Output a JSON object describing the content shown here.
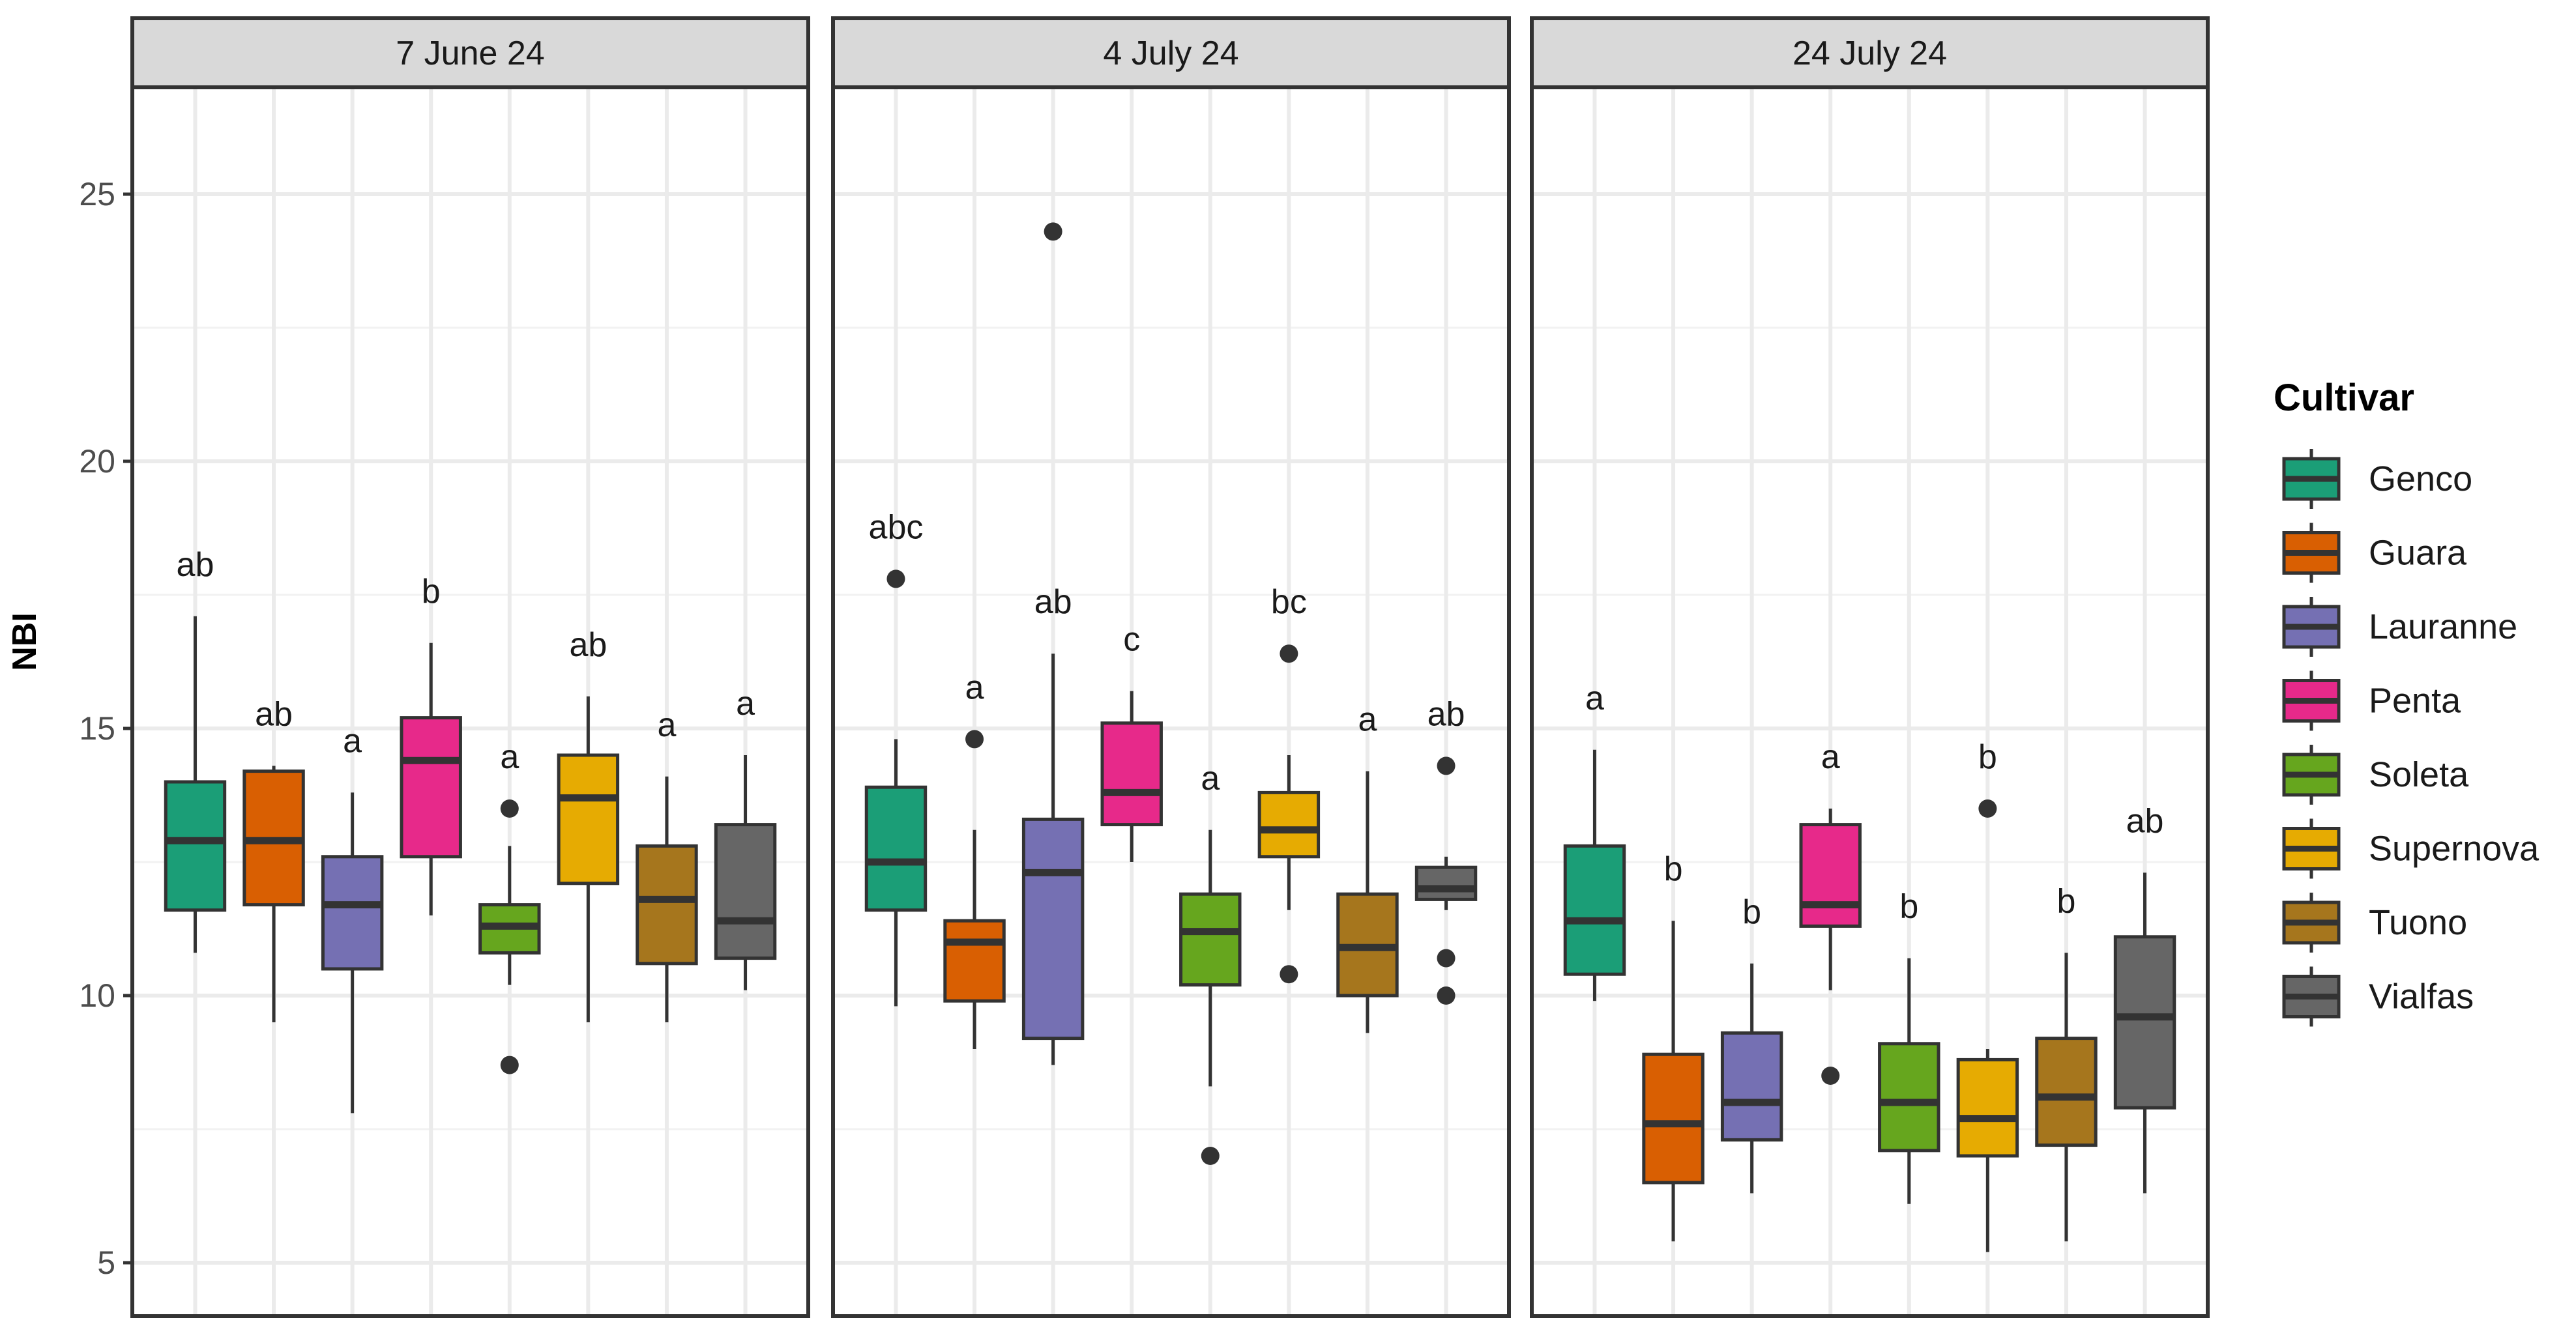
{
  "chart_data": {
    "type": "boxplot",
    "ylabel": "NBI",
    "ylim": [
      4,
      27
    ],
    "yticks": [
      5,
      10,
      15,
      20,
      25
    ],
    "legend": {
      "title": "Cultivar",
      "position": "right"
    },
    "cultivars": [
      {
        "name": "Genco",
        "color": "#1B9E77"
      },
      {
        "name": "Guara",
        "color": "#D95F02"
      },
      {
        "name": "Lauranne",
        "color": "#7570B3"
      },
      {
        "name": "Penta",
        "color": "#E7298A"
      },
      {
        "name": "Soleta",
        "color": "#66A61E"
      },
      {
        "name": "Supernova",
        "color": "#E6AB02"
      },
      {
        "name": "Tuono",
        "color": "#A6761D"
      },
      {
        "name": "Vialfas",
        "color": "#666666"
      }
    ],
    "panels": [
      {
        "label": "7 June 24",
        "boxes": [
          {
            "cultivar": "Genco",
            "lo": 10.8,
            "q1": 11.6,
            "med": 12.9,
            "q3": 14.0,
            "hi": 17.1,
            "out": [],
            "letter": "ab"
          },
          {
            "cultivar": "Guara",
            "lo": 9.5,
            "q1": 11.7,
            "med": 12.9,
            "q3": 14.2,
            "hi": 14.3,
            "out": [],
            "letter": "ab"
          },
          {
            "cultivar": "Lauranne",
            "lo": 7.8,
            "q1": 10.5,
            "med": 11.7,
            "q3": 12.6,
            "hi": 13.8,
            "out": [],
            "letter": "a"
          },
          {
            "cultivar": "Penta",
            "lo": 11.5,
            "q1": 12.6,
            "med": 14.4,
            "q3": 15.2,
            "hi": 16.6,
            "out": [],
            "letter": "b"
          },
          {
            "cultivar": "Soleta",
            "lo": 10.2,
            "q1": 10.8,
            "med": 11.3,
            "q3": 11.7,
            "hi": 12.8,
            "out": [
              13.5,
              8.7
            ],
            "letter": "a"
          },
          {
            "cultivar": "Supernova",
            "lo": 9.5,
            "q1": 12.1,
            "med": 13.7,
            "q3": 14.5,
            "hi": 15.6,
            "out": [],
            "letter": "ab"
          },
          {
            "cultivar": "Tuono",
            "lo": 9.5,
            "q1": 10.6,
            "med": 11.8,
            "q3": 12.8,
            "hi": 14.1,
            "out": [],
            "letter": "a"
          },
          {
            "cultivar": "Vialfas",
            "lo": 10.1,
            "q1": 10.7,
            "med": 11.4,
            "q3": 13.2,
            "hi": 14.5,
            "out": [],
            "letter": "a"
          }
        ]
      },
      {
        "label": "4 July 24",
        "boxes": [
          {
            "cultivar": "Genco",
            "lo": 9.8,
            "q1": 11.6,
            "med": 12.5,
            "q3": 13.9,
            "hi": 14.8,
            "out": [
              17.8
            ],
            "letter": "abc"
          },
          {
            "cultivar": "Guara",
            "lo": 9.0,
            "q1": 9.9,
            "med": 11.0,
            "q3": 11.4,
            "hi": 13.1,
            "out": [
              14.8
            ],
            "letter": "a"
          },
          {
            "cultivar": "Lauranne",
            "lo": 8.7,
            "q1": 9.2,
            "med": 12.3,
            "q3": 13.3,
            "hi": 16.4,
            "out": [
              24.3
            ],
            "letter": "ab"
          },
          {
            "cultivar": "Penta",
            "lo": 12.5,
            "q1": 13.2,
            "med": 13.8,
            "q3": 15.1,
            "hi": 15.7,
            "out": [],
            "letter": "c"
          },
          {
            "cultivar": "Soleta",
            "lo": 8.3,
            "q1": 10.2,
            "med": 11.2,
            "q3": 11.9,
            "hi": 13.1,
            "out": [
              7.0
            ],
            "letter": "a"
          },
          {
            "cultivar": "Supernova",
            "lo": 11.6,
            "q1": 12.6,
            "med": 13.1,
            "q3": 13.8,
            "hi": 14.5,
            "out": [
              16.4,
              10.4
            ],
            "letter": "bc"
          },
          {
            "cultivar": "Tuono",
            "lo": 9.3,
            "q1": 10.0,
            "med": 10.9,
            "q3": 11.9,
            "hi": 14.2,
            "out": [],
            "letter": "a"
          },
          {
            "cultivar": "Vialfas",
            "lo": 11.6,
            "q1": 11.8,
            "med": 12.0,
            "q3": 12.4,
            "hi": 12.6,
            "out": [
              14.3,
              10.7,
              10.0
            ],
            "letter": "ab"
          }
        ]
      },
      {
        "label": "24 July 24",
        "boxes": [
          {
            "cultivar": "Genco",
            "lo": 9.9,
            "q1": 10.4,
            "med": 11.4,
            "q3": 12.8,
            "hi": 14.6,
            "out": [],
            "letter": "a"
          },
          {
            "cultivar": "Guara",
            "lo": 5.4,
            "q1": 6.5,
            "med": 7.6,
            "q3": 8.9,
            "hi": 11.4,
            "out": [],
            "letter": "b"
          },
          {
            "cultivar": "Lauranne",
            "lo": 6.3,
            "q1": 7.3,
            "med": 8.0,
            "q3": 9.3,
            "hi": 10.6,
            "out": [],
            "letter": "b"
          },
          {
            "cultivar": "Penta",
            "lo": 10.1,
            "q1": 11.3,
            "med": 11.7,
            "q3": 13.2,
            "hi": 13.5,
            "out": [
              8.5
            ],
            "letter": "a"
          },
          {
            "cultivar": "Soleta",
            "lo": 6.1,
            "q1": 7.1,
            "med": 8.0,
            "q3": 9.1,
            "hi": 10.7,
            "out": [],
            "letter": "b"
          },
          {
            "cultivar": "Supernova",
            "lo": 5.2,
            "q1": 7.0,
            "med": 7.7,
            "q3": 8.8,
            "hi": 9.0,
            "out": [
              13.5
            ],
            "letter": "b"
          },
          {
            "cultivar": "Tuono",
            "lo": 5.4,
            "q1": 7.2,
            "med": 8.1,
            "q3": 9.2,
            "hi": 10.8,
            "out": [],
            "letter": "b"
          },
          {
            "cultivar": "Vialfas",
            "lo": 6.3,
            "q1": 7.9,
            "med": 9.6,
            "q3": 11.1,
            "hi": 12.3,
            "out": [],
            "letter": "ab"
          }
        ]
      }
    ]
  }
}
